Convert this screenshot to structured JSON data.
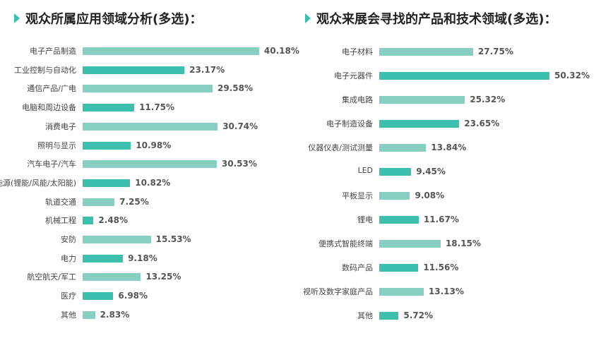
{
  "colors": {
    "light": "#87cfc0",
    "dark": "#3dbfae"
  },
  "chart_data": [
    {
      "type": "bar",
      "orientation": "horizontal",
      "title": "观众所属应用领域分析(多选)：",
      "categories": [
        "电子产品制造",
        "工业控制与自动化",
        "通信产品/广电",
        "电脑和周边设备",
        "消费电子",
        "照明与显示",
        "汽车电子/汽车",
        "新能源(锂能/风能/太阳能)",
        "轨道交通",
        "机械工程",
        "安防",
        "电力",
        "航空航天/军工",
        "医疗",
        "其他"
      ],
      "values": [
        40.18,
        23.17,
        29.58,
        11.75,
        30.74,
        10.98,
        30.53,
        10.82,
        7.25,
        2.48,
        15.53,
        9.18,
        13.25,
        6.98,
        2.83
      ],
      "labels": [
        "40.18%",
        "23.17%",
        "29.58%",
        "11.75%",
        "30.74%",
        "10.98%",
        "30.53%",
        "10.82%",
        "7.25%",
        "2.48%",
        "15.53%",
        "9.18%",
        "13.25%",
        "6.98%",
        "2.83%"
      ]
    },
    {
      "type": "bar",
      "orientation": "horizontal",
      "title": "观众来展会寻找的产品和技术领域(多选)：",
      "categories": [
        "电子材料",
        "电子元器件",
        "集成电路",
        "电子制造设备",
        "仪器仪表/测试测量",
        "LED",
        "平板显示",
        "锂电",
        "便携式智能终端",
        "数码产品",
        "视听及数字家庭产品",
        "其他"
      ],
      "values": [
        27.75,
        50.32,
        25.32,
        23.65,
        13.84,
        9.45,
        9.08,
        11.67,
        18.15,
        11.56,
        13.13,
        5.72
      ],
      "labels": [
        "27.75%",
        "50.32%",
        "25.32%",
        "23.65%",
        "13.84%",
        "9.45%",
        "9.08%",
        "11.67%",
        "18.15%",
        "11.56%",
        "13.13%",
        "5.72%"
      ]
    }
  ]
}
